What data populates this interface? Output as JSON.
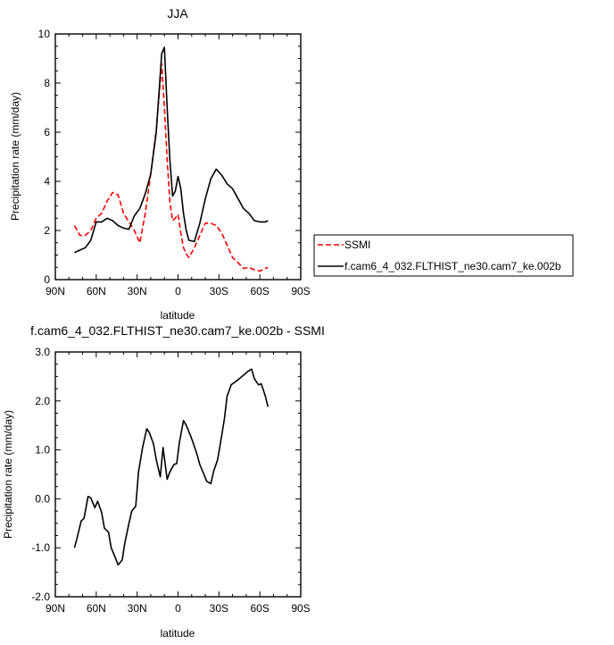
{
  "chart_data": [
    {
      "type": "line",
      "title": "JJA",
      "xlabel": "latitude",
      "ylabel": "Precipitation rate (mm/day)",
      "xlim": [
        -90,
        90
      ],
      "ylim": [
        0,
        10
      ],
      "x_reversed": true,
      "x_ticks": [
        -90,
        -60,
        -30,
        0,
        30,
        60,
        90
      ],
      "x_tick_labels": [
        "90N",
        "60N",
        "30N",
        "0",
        "30S",
        "60S",
        "90S"
      ],
      "y_ticks": [
        0,
        2,
        4,
        6,
        8,
        10
      ],
      "y_tick_labels": [
        "0",
        "2",
        "4",
        "6",
        "8",
        "10"
      ],
      "legend_position": "right",
      "series": [
        {
          "name": "SSMI",
          "color": "#ff0000",
          "style": "dashed",
          "x": [
            -76,
            -72,
            -68,
            -64,
            -60,
            -56,
            -52,
            -48,
            -44,
            -40,
            -36,
            -32,
            -28,
            -24,
            -20,
            -16,
            -12,
            -10,
            -8,
            -6,
            -4,
            -2,
            0,
            2,
            4,
            6,
            8,
            12,
            16,
            20,
            24,
            28,
            32,
            36,
            40,
            44,
            48,
            52,
            56,
            60,
            64,
            66
          ],
          "y": [
            2.2,
            1.8,
            1.8,
            2.0,
            2.5,
            2.7,
            3.2,
            3.55,
            3.45,
            2.7,
            2.35,
            2.0,
            1.5,
            2.7,
            4.3,
            6.1,
            8.8,
            7.0,
            4.9,
            3.2,
            2.4,
            2.5,
            2.65,
            1.9,
            1.3,
            1.05,
            0.9,
            1.3,
            1.8,
            2.3,
            2.3,
            2.2,
            1.9,
            1.4,
            0.9,
            0.7,
            0.45,
            0.5,
            0.4,
            0.35,
            0.45,
            0.5
          ]
        },
        {
          "name": "f.cam6_4_032.FLTHIST_ne30.cam7_ke.002b",
          "color": "#000000",
          "style": "solid",
          "x": [
            -76,
            -72,
            -68,
            -64,
            -60,
            -56,
            -52,
            -48,
            -44,
            -40,
            -36,
            -32,
            -28,
            -24,
            -20,
            -16,
            -12,
            -10,
            -8,
            -6,
            -4,
            -2,
            0,
            2,
            4,
            6,
            8,
            12,
            16,
            20,
            24,
            28,
            32,
            36,
            40,
            44,
            48,
            52,
            56,
            60,
            64,
            66
          ],
          "y": [
            1.1,
            1.2,
            1.3,
            1.6,
            2.35,
            2.35,
            2.5,
            2.4,
            2.2,
            2.1,
            2.05,
            2.6,
            2.9,
            3.5,
            4.3,
            6.0,
            9.2,
            9.45,
            7.0,
            4.9,
            3.4,
            3.6,
            4.2,
            3.7,
            2.7,
            2.0,
            1.6,
            1.55,
            2.3,
            3.3,
            4.1,
            4.5,
            4.25,
            3.9,
            3.7,
            3.3,
            2.9,
            2.7,
            2.4,
            2.35,
            2.35,
            2.4
          ]
        }
      ]
    },
    {
      "type": "line",
      "title": "f.cam6_4_032.FLTHIST_ne30.cam7_ke.002b - SSMI",
      "xlabel": "latitude",
      "ylabel": "Precipitation rate (mm/day)",
      "xlim": [
        -90,
        90
      ],
      "ylim": [
        -2,
        3
      ],
      "x_reversed": true,
      "x_ticks": [
        -90,
        -60,
        -30,
        0,
        30,
        60,
        90
      ],
      "x_tick_labels": [
        "90N",
        "60N",
        "30N",
        "0",
        "30S",
        "60S",
        "90S"
      ],
      "y_ticks": [
        -2,
        -1,
        0,
        1,
        2,
        3
      ],
      "y_tick_labels": [
        "-2.0",
        "-1.0",
        "0.0",
        "1.0",
        "2.0",
        "3.0"
      ],
      "series": [
        {
          "color": "#000000",
          "style": "solid",
          "x": [
            -76,
            -74,
            -71,
            -69,
            -66,
            -64,
            -61,
            -59,
            -56,
            -54,
            -51,
            -49,
            -46,
            -44,
            -41,
            -39,
            -36,
            -34,
            -31,
            -29,
            -26,
            -23,
            -21,
            -18,
            -16,
            -13,
            -11,
            -8,
            -6,
            -3,
            -1,
            1,
            4,
            6,
            9,
            11,
            14,
            16,
            19,
            21,
            24,
            26,
            29,
            31,
            34,
            36,
            39,
            41,
            44,
            46,
            49,
            51,
            54,
            56,
            59,
            61,
            64,
            66
          ],
          "y": [
            -1.0,
            -0.8,
            -0.45,
            -0.4,
            0.05,
            0.02,
            -0.18,
            -0.05,
            -0.28,
            -0.6,
            -0.68,
            -1.0,
            -1.2,
            -1.35,
            -1.25,
            -0.9,
            -0.5,
            -0.25,
            -0.15,
            0.55,
            1.05,
            1.43,
            1.35,
            1.12,
            0.8,
            0.45,
            1.05,
            0.4,
            0.55,
            0.7,
            0.72,
            1.15,
            1.6,
            1.5,
            1.3,
            1.15,
            0.9,
            0.7,
            0.5,
            0.36,
            0.31,
            0.55,
            0.8,
            1.12,
            1.63,
            2.1,
            2.33,
            2.37,
            2.43,
            2.48,
            2.55,
            2.6,
            2.65,
            2.45,
            2.33,
            2.35,
            2.1,
            1.88
          ]
        }
      ]
    }
  ]
}
